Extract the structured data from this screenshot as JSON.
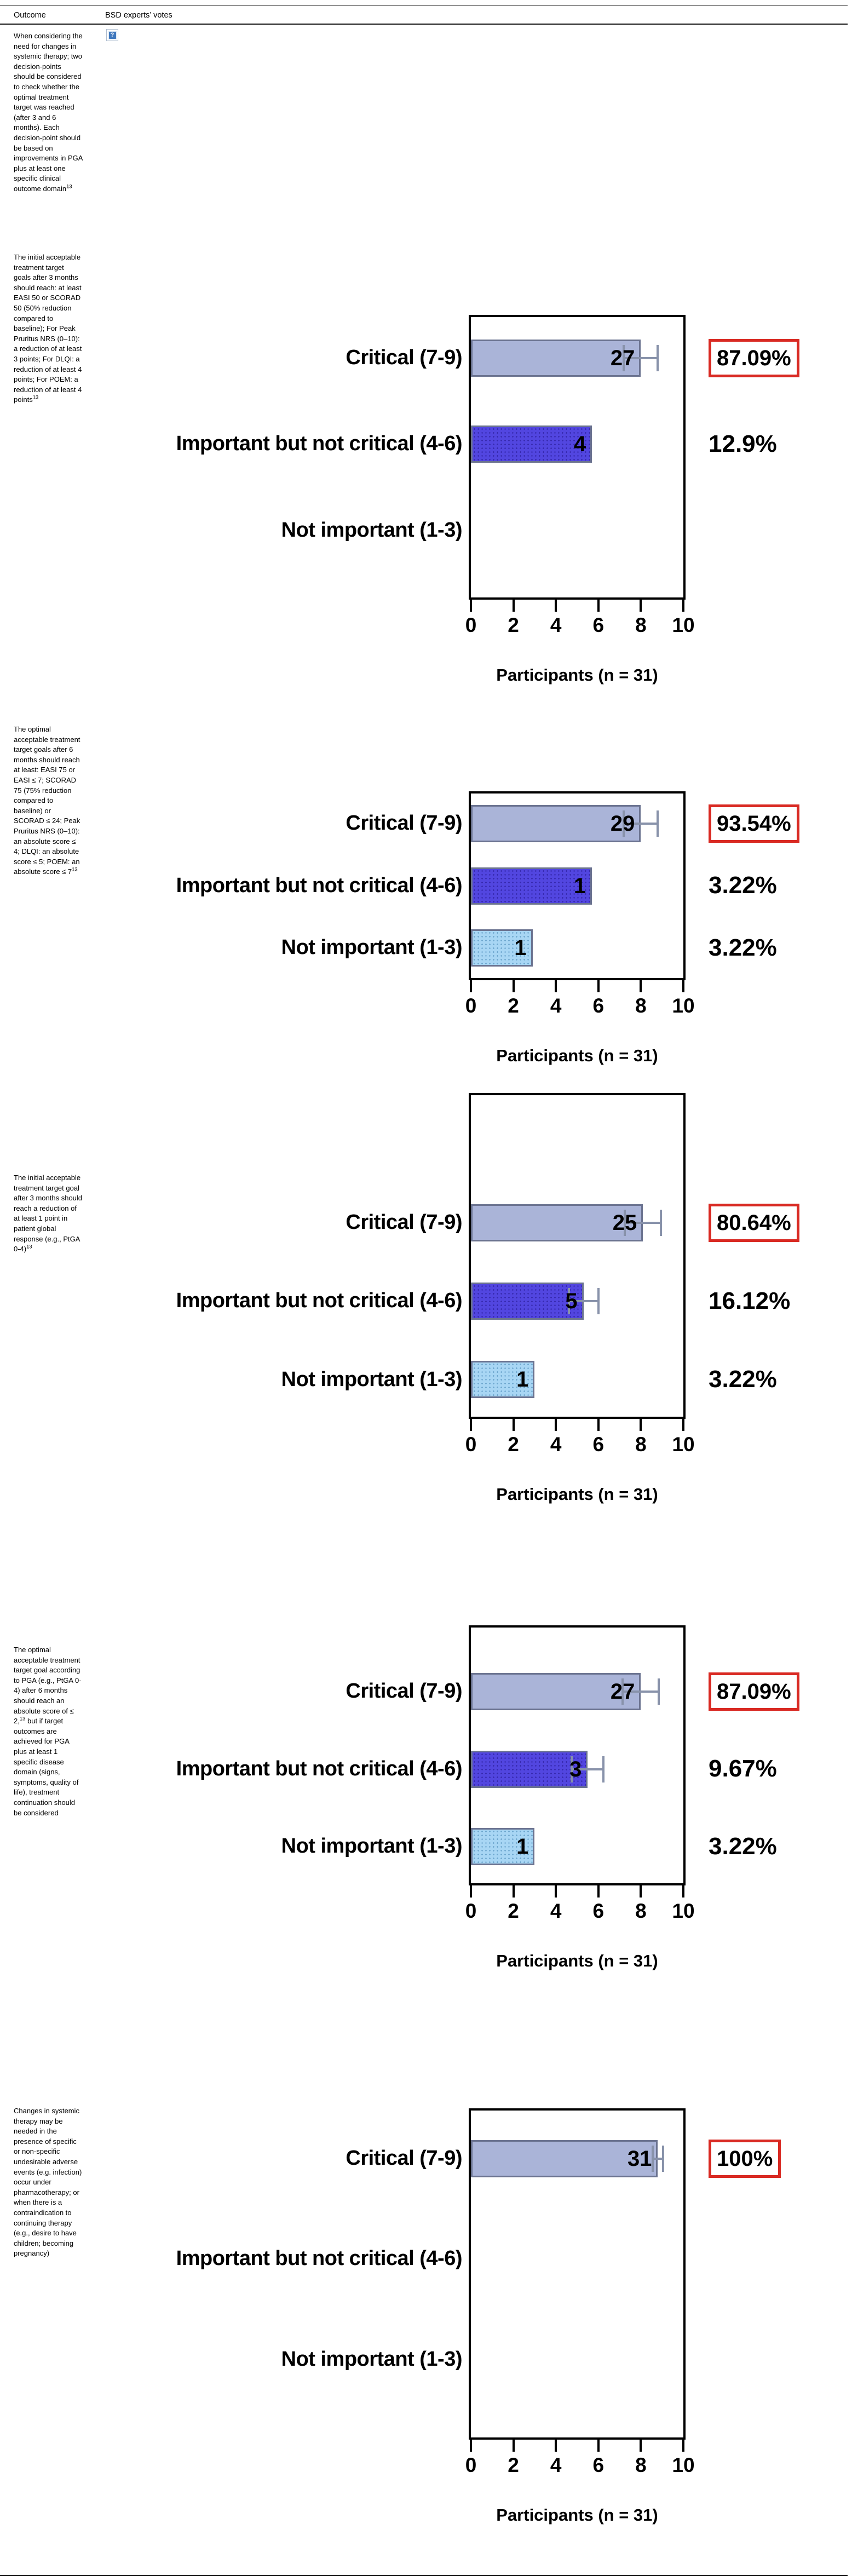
{
  "page": {
    "columns": [
      "Outcome",
      "BSD experts’ votes"
    ]
  },
  "icons": {
    "broken_image": "?"
  },
  "colors": {
    "critical_bar": "#aab4d8",
    "important_bar": "#5246e0",
    "not_important_bar": "#a8d6f4",
    "bar_border": "#6b7390",
    "error_bar": "#8892aa",
    "highlight_box": "#d92a23",
    "axis": "#000000"
  },
  "rows": [
    {
      "outcome": {
        "before": "When considering the need for changes in systemic therapy; two decision-points should be considered to check whether the optimal treatment target was reached (after 3 and 6 months). Each decision-point should be based on improvements in PGA plus at least one specific clinical outcome domain",
        "ref": "13",
        "after": ""
      },
      "chart": null
    },
    {
      "outcome": {
        "before": "The initial acceptable treatment target goals after 3 months should reach: at least EASI 50 or SCORAD 50 (50% reduction compared to baseline); For Peak Pruritus NRS (0–10): a reduction of at least 3 points; For DLQI: a reduction of at least 4 points; For POEM: a reduction of at least 4 points",
        "ref": "13",
        "after": ""
      },
      "chart": 0
    },
    {
      "outcome": {
        "before": "The optimal acceptable treatment target goals after 6 months should reach at least: EASI 75 or EASI ≤ 7; SCORAD 75 (75% reduction compared to baseline) or SCORAD ≤ 24; Peak Pruritus NRS (0–10): an absolute score ≤ 4; DLQI: an absolute score ≤ 5; POEM: an absolute score ≤ 7",
        "ref": "13",
        "after": ""
      },
      "chart": 1
    },
    {
      "outcome": {
        "before": "The initial acceptable treatment target goal after 3 months should reach a reduction of at least 1 point in patient global response (e.g., PtGA 0-4)",
        "ref": "13",
        "after": ""
      },
      "chart": 2
    },
    {
      "outcome": {
        "before": "The optimal acceptable treatment target goal according to PGA (e.g., PtGA 0-4) after 6 months should reach an absolute score of ≤ 2,",
        "ref": "13",
        "after": " but if target outcomes are achieved for PGA plus at least 1 specific disease domain (signs, symptoms, quality of life), treatment continuation should be considered"
      },
      "chart": 3
    },
    {
      "outcome": {
        "before": "Changes in systemic therapy may be needed in the presence of specific or non-specific undesirable adverse events (e.g. infection) occur under pharmacotherapy; or when there is a contraindication to continuing therapy (e.g., desire to have children; becoming pregnancy)",
        "ref": "",
        "after": ""
      },
      "chart": 4
    }
  ],
  "chart_data": [
    {
      "type": "bar",
      "orientation": "horizontal",
      "categories": [
        "Critical (7-9)",
        "Important but not critical (4-6)",
        "Not important (1-3)"
      ],
      "counts": [
        27,
        4,
        null
      ],
      "percentages": [
        "87.09%",
        "12.9%",
        ""
      ],
      "bar_lengths": [
        8,
        5.7,
        0
      ],
      "error_bars": [
        0.85,
        0,
        0
      ],
      "highlighted_percent": "87.09%",
      "x_ticks": [
        0,
        2,
        4,
        6,
        8,
        10
      ],
      "xlim": [
        0,
        10
      ],
      "xlabel": "Participants (n = 31)",
      "grid": false,
      "legend": "none"
    },
    {
      "type": "bar",
      "orientation": "horizontal",
      "categories": [
        "Critical (7-9)",
        "Important but not critical (4-6)",
        "Not important (1-3)"
      ],
      "counts": [
        29,
        1,
        1
      ],
      "percentages": [
        "93.54%",
        "3.22%",
        "3.22%"
      ],
      "bar_lengths": [
        8,
        5.7,
        2.9
      ],
      "error_bars": [
        0.85,
        0,
        0
      ],
      "highlighted_percent": "93.54%",
      "x_ticks": [
        0,
        2,
        4,
        6,
        8,
        10
      ],
      "xlim": [
        0,
        10
      ],
      "xlabel": "Participants (n = 31)",
      "grid": false,
      "legend": "none"
    },
    {
      "type": "bar",
      "orientation": "horizontal",
      "categories": [
        "Critical (7-9)",
        "Important but not critical (4-6)",
        "Not important (1-3)"
      ],
      "counts": [
        25,
        5,
        1
      ],
      "percentages": [
        "80.64%",
        "16.12%",
        "3.22%"
      ],
      "bar_lengths": [
        8.1,
        5.3,
        3
      ],
      "error_bars": [
        0.9,
        0.75,
        0
      ],
      "highlighted_percent": "80.64%",
      "x_ticks": [
        0,
        2,
        4,
        6,
        8,
        10
      ],
      "xlim": [
        0,
        10
      ],
      "xlabel": "Participants (n = 31)",
      "grid": false,
      "legend": "none"
    },
    {
      "type": "bar",
      "orientation": "horizontal",
      "categories": [
        "Critical (7-9)",
        "Important but not critical (4-6)",
        "Not important (1-3)"
      ],
      "counts": [
        27,
        3,
        1
      ],
      "percentages": [
        "87.09%",
        "9.67%",
        "3.22%"
      ],
      "bar_lengths": [
        8,
        5.5,
        3
      ],
      "error_bars": [
        0.9,
        0.8,
        0
      ],
      "highlighted_percent": "87.09%",
      "x_ticks": [
        0,
        2,
        4,
        6,
        8,
        10
      ],
      "xlim": [
        0,
        10
      ],
      "xlabel": "Participants (n = 31)",
      "grid": false,
      "legend": "none"
    },
    {
      "type": "bar",
      "orientation": "horizontal",
      "categories": [
        "Critical (7-9)",
        "Important but not critical (4-6)",
        "Not important (1-3)"
      ],
      "counts": [
        31,
        null,
        null
      ],
      "percentages": [
        "100%",
        "",
        ""
      ],
      "bar_lengths": [
        8.8,
        0,
        0
      ],
      "error_bars": [
        0.3,
        0,
        0
      ],
      "highlighted_percent": "100%",
      "x_ticks": [
        0,
        2,
        4,
        6,
        8,
        10
      ],
      "xlim": [
        0,
        10
      ],
      "xlabel": "Participants (n = 31)",
      "grid": false,
      "legend": "none"
    }
  ]
}
